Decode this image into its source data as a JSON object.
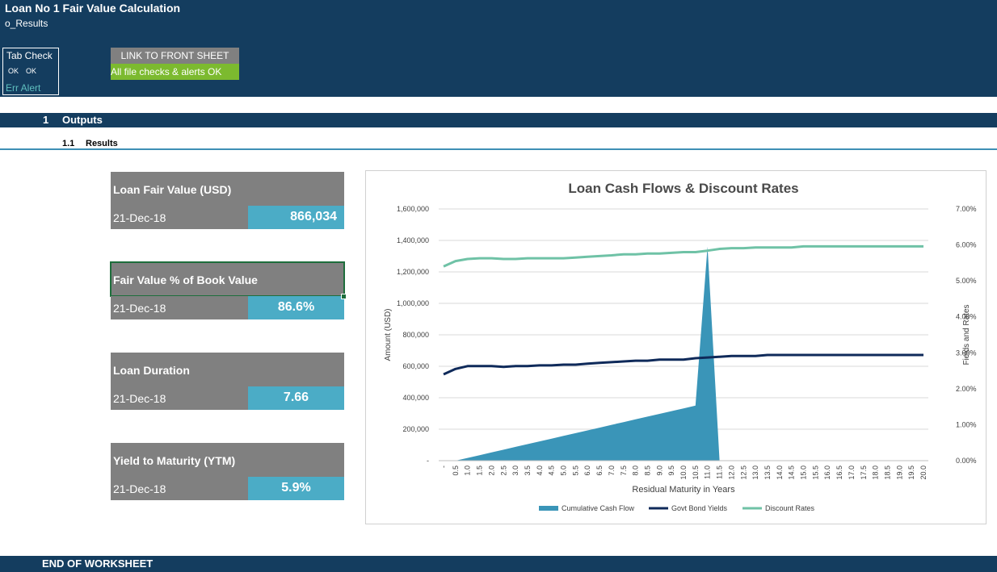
{
  "header": {
    "title": "Loan No 1 Fair Value Calculation",
    "subtitle": "o_Results",
    "tab_check": {
      "title": "Tab Check",
      "ok1": "OK",
      "ok2": "OK",
      "err_alert": "Err Alert"
    },
    "link_button": "LINK TO FRONT SHEET",
    "check_status": "All file checks & alerts OK"
  },
  "section": {
    "number": "1",
    "title": "Outputs"
  },
  "subsection": {
    "number": "1.1",
    "title": "Results"
  },
  "cards": [
    {
      "title": "Loan Fair Value (USD)",
      "date": "21-Dec-18",
      "value": "866,034"
    },
    {
      "title": "Fair Value % of Book Value",
      "date": "21-Dec-18",
      "value": "86.6%"
    },
    {
      "title": "Loan Duration",
      "date": "21-Dec-18",
      "value": "7.66"
    },
    {
      "title": "Yield to Maturity (YTM)",
      "date": "21-Dec-18",
      "value": "5.9%"
    }
  ],
  "footer": "END OF WORKSHEET",
  "colors": {
    "navy": "#143d5f",
    "teal": "#4bacc6",
    "gray": "#808080",
    "green": "#7cba2f",
    "cash_flow": "#3a95b8",
    "govt_yield": "#0f2a5a",
    "discount": "#6fc2a6"
  },
  "chart_data": {
    "type": "area",
    "title": "Loan Cash Flows &  Discount Rates",
    "xlabel": "Residual Maturity in Years",
    "ylabel_left": "Amount (USD)",
    "ylabel_right": "Fields and Rates",
    "x": [
      "-",
      "0.5",
      "1.0",
      "1.5",
      "2.0",
      "2.5",
      "3.0",
      "3.5",
      "4.0",
      "4.5",
      "5.0",
      "5.5",
      "6.0",
      "6.5",
      "7.0",
      "7.5",
      "8.0",
      "8.5",
      "9.0",
      "9.5",
      "10.0",
      "10.5",
      "11.0",
      "11.5",
      "12.0",
      "12.5",
      "13.0",
      "13.5",
      "14.0",
      "14.5",
      "15.0",
      "15.5",
      "16.0",
      "16.5",
      "17.0",
      "17.5",
      "18.0",
      "18.5",
      "19.0",
      "19.5",
      "20.0"
    ],
    "y_left_ticks": [
      "-",
      "200,000",
      "400,000",
      "600,000",
      "800,000",
      "1,000,000",
      "1,200,000",
      "1,400,000",
      "1,600,000"
    ],
    "y_right_ticks": [
      "0.00%",
      "1.00%",
      "2.00%",
      "3.00%",
      "4.00%",
      "5.00%",
      "6.00%",
      "7.00%"
    ],
    "ylim_left": [
      0,
      1600000
    ],
    "ylim_right": [
      0,
      0.07
    ],
    "grid": true,
    "legend_position": "bottom",
    "series": [
      {
        "name": "Cumulative Cash Flow",
        "axis": "left",
        "kind": "area",
        "values": [
          0,
          0,
          17500,
          35000,
          52500,
          70000,
          87500,
          105000,
          122500,
          140000,
          157500,
          175000,
          192500,
          210000,
          227500,
          245000,
          262500,
          280000,
          297500,
          315000,
          332500,
          350000,
          1360000,
          0,
          null,
          null,
          null,
          null,
          null,
          null,
          null,
          null,
          null,
          null,
          null,
          null,
          null,
          null,
          null,
          null,
          null
        ],
        "note_x": null
      },
      {
        "name": "Govt Bond Yields",
        "axis": "right",
        "kind": "line",
        "values": [
          0.024,
          0.0255,
          0.0263,
          0.0263,
          0.0263,
          0.0261,
          0.0263,
          0.0263,
          0.0265,
          0.0265,
          0.0267,
          0.0267,
          0.027,
          0.0272,
          0.0274,
          0.0276,
          0.0278,
          0.0278,
          0.0281,
          0.0281,
          0.0281,
          0.0285,
          0.0287,
          0.0289,
          0.0291,
          0.0291,
          0.0291,
          0.0294,
          0.0294,
          0.0294,
          0.0294,
          0.0294,
          0.0294,
          0.0294,
          0.0294,
          0.0294,
          0.0294,
          0.0294,
          0.0294,
          0.0294,
          0.0294
        ]
      },
      {
        "name": "Discount Rates",
        "axis": "right",
        "kind": "line",
        "values": [
          0.054,
          0.0555,
          0.0561,
          0.0563,
          0.0563,
          0.0561,
          0.0561,
          0.0563,
          0.0563,
          0.0563,
          0.0563,
          0.0565,
          0.0567,
          0.0569,
          0.0571,
          0.0574,
          0.0574,
          0.0576,
          0.0576,
          0.0578,
          0.058,
          0.058,
          0.0584,
          0.0589,
          0.0591,
          0.0591,
          0.0593,
          0.0593,
          0.0593,
          0.0593,
          0.0596,
          0.0596,
          0.0596,
          0.0596,
          0.0596,
          0.0596,
          0.0596,
          0.0596,
          0.0596,
          0.0596,
          0.0596
        ]
      }
    ]
  }
}
